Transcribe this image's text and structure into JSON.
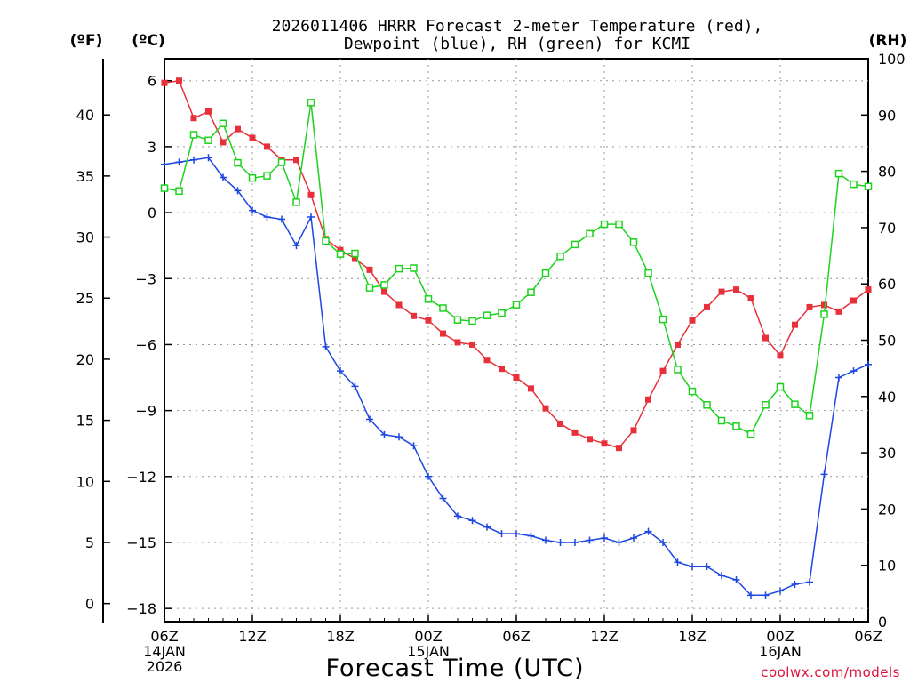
{
  "chart_data": {
    "type": "line",
    "title_line1": "2026011406 HRRR Forecast 2-meter Temperature (red),",
    "title_line2": "Dewpoint (blue), RH (green) for KCMI",
    "xlabel": "Forecast Time (UTC)",
    "credit": "coolwx.com/models",
    "unit_labels": {
      "fahrenheit": "(ºF)",
      "celsius": "(ºC)",
      "rh": "(RH)"
    },
    "x_hours": [
      0,
      1,
      2,
      3,
      4,
      5,
      6,
      7,
      8,
      9,
      10,
      11,
      12,
      13,
      14,
      15,
      16,
      17,
      18,
      19,
      20,
      21,
      22,
      23,
      24,
      25,
      26,
      27,
      28,
      29,
      30,
      31,
      32,
      33,
      34,
      35,
      36,
      37,
      38,
      39,
      40,
      41,
      42,
      43,
      44,
      45,
      46,
      47,
      48
    ],
    "x_tick_labels": [
      {
        "hour": 0,
        "lines": [
          "06Z",
          "14JAN",
          "2026"
        ]
      },
      {
        "hour": 6,
        "lines": [
          "12Z"
        ]
      },
      {
        "hour": 12,
        "lines": [
          "18Z"
        ]
      },
      {
        "hour": 18,
        "lines": [
          "00Z",
          "15JAN"
        ]
      },
      {
        "hour": 24,
        "lines": [
          "06Z"
        ]
      },
      {
        "hour": 30,
        "lines": [
          "12Z"
        ]
      },
      {
        "hour": 36,
        "lines": [
          "18Z"
        ]
      },
      {
        "hour": 42,
        "lines": [
          "00Z",
          "16JAN"
        ]
      },
      {
        "hour": 48,
        "lines": [
          "06Z"
        ]
      }
    ],
    "celsius_axis": {
      "min": -18.6,
      "max": 7.0,
      "ticks": [
        6,
        3,
        0,
        -3,
        -6,
        -9,
        -12,
        -15,
        -18
      ],
      "tick_labels": [
        "6",
        "3",
        "0",
        "−3",
        "−6",
        "−9",
        "−12",
        "−15",
        "−18"
      ]
    },
    "fahrenheit_axis": {
      "ticks": [
        0,
        5,
        10,
        15,
        20,
        25,
        30,
        35,
        40
      ],
      "tick_labels": [
        "0",
        "5",
        "10",
        "15",
        "20",
        "25",
        "30",
        "35",
        "40"
      ]
    },
    "rh_axis": {
      "min": 0,
      "max": 100,
      "ticks": [
        0,
        10,
        20,
        30,
        40,
        50,
        60,
        70,
        80,
        90,
        100
      ],
      "tick_labels": [
        "0",
        "10",
        "20",
        "30",
        "40",
        "50",
        "60",
        "70",
        "80",
        "90",
        "100"
      ]
    },
    "series": [
      {
        "name": "Temperature",
        "units": "C",
        "color": "#e8303a",
        "marker": "filled-square",
        "values": [
          5.9,
          6.0,
          4.3,
          4.6,
          3.2,
          3.8,
          3.4,
          3.0,
          2.4,
          2.4,
          0.8,
          -1.2,
          -1.7,
          -2.1,
          -2.6,
          -3.6,
          -4.2,
          -4.7,
          -4.9,
          -5.5,
          -5.9,
          -6.0,
          -6.7,
          -7.1,
          -7.5,
          -8.0,
          -8.9,
          -9.6,
          -10.0,
          -10.3,
          -10.5,
          -10.7,
          -9.9,
          -8.5,
          -7.2,
          -6.0,
          -4.9,
          -4.3,
          -3.6,
          -3.5,
          -3.9,
          -5.7,
          -6.5,
          -5.1,
          -4.3,
          -4.2,
          -4.5,
          -4.0,
          -3.5
        ]
      },
      {
        "name": "Dewpoint",
        "units": "C",
        "color": "#1c46e0",
        "marker": "plus",
        "values": [
          2.2,
          2.3,
          2.4,
          2.5,
          1.6,
          1.0,
          0.1,
          -0.2,
          -0.3,
          -1.5,
          -0.2,
          -6.1,
          -7.2,
          -7.9,
          -9.4,
          -10.1,
          -10.2,
          -10.6,
          -12.0,
          -13.0,
          -13.8,
          -14.0,
          -14.3,
          -14.6,
          -14.6,
          -14.7,
          -14.9,
          -15.0,
          -15.0,
          -14.9,
          -14.8,
          -15.0,
          -14.8,
          -14.5,
          -15.0,
          -15.9,
          -16.1,
          -16.1,
          -16.5,
          -16.7,
          -17.4,
          -17.4,
          -17.2,
          -16.9,
          -16.8,
          -11.9,
          -7.5,
          -7.2,
          -6.9
        ]
      },
      {
        "name": "RH",
        "units": "%",
        "color": "#1ed21e",
        "marker": "open-square",
        "values": [
          77,
          76.5,
          86.5,
          85.5,
          88.5,
          81.5,
          78.8,
          79.2,
          81.6,
          74.5,
          92.2,
          67.6,
          65.3,
          65.4,
          59.3,
          59.8,
          62.7,
          62.8,
          57.3,
          55.7,
          53.6,
          53.4,
          54.4,
          54.8,
          56.3,
          58.5,
          61.9,
          64.9,
          67.0,
          68.9,
          70.6,
          70.6,
          67.4,
          61.9,
          53.7,
          44.8,
          40.9,
          38.5,
          35.7,
          34.7,
          33.3,
          38.5,
          41.7,
          38.6,
          36.6,
          54.6,
          79.6,
          77.7,
          77.3
        ]
      }
    ]
  }
}
